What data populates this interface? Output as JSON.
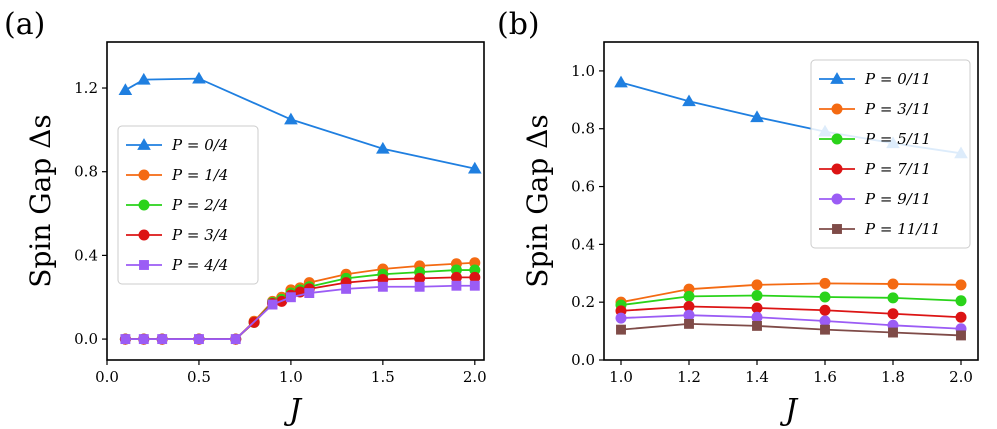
{
  "figure": {
    "panels": [
      "(a)",
      "(b)"
    ]
  },
  "chart_data": [
    {
      "type": "line",
      "panel_label": "(a)",
      "xlabel": "J",
      "ylabel": "Spin Gap Δs",
      "xlim": [
        0.0,
        2.05
      ],
      "ylim": [
        -0.1,
        1.42
      ],
      "xticks": [
        0.0,
        0.5,
        1.0,
        1.5,
        2.0
      ],
      "xtick_labels": [
        "0.0",
        "0.5",
        "1.0",
        "1.5",
        "2.0"
      ],
      "yticks": [
        0.0,
        0.4,
        0.8,
        1.2
      ],
      "ytick_labels": [
        "0.0",
        "0.4",
        "0.8",
        "1.2"
      ],
      "legend_position": "center-left",
      "series": [
        {
          "name": "P = 0/4",
          "color": "#1f7fe0",
          "marker": "triangle",
          "x": [
            0.1,
            0.2,
            0.5,
            1.0,
            1.5,
            2.0
          ],
          "y": [
            1.19,
            1.24,
            1.245,
            1.05,
            0.91,
            0.815
          ]
        },
        {
          "name": "P = 1/4",
          "color": "#f46a12",
          "marker": "circle",
          "x": [
            0.1,
            0.2,
            0.3,
            0.5,
            0.7,
            0.8,
            0.9,
            0.95,
            1.0,
            1.05,
            1.1,
            1.3,
            1.5,
            1.7,
            1.9,
            2.0
          ],
          "y": [
            0.0,
            0.0,
            0.0,
            0.0,
            0.0,
            0.085,
            0.18,
            0.2,
            0.235,
            0.245,
            0.27,
            0.31,
            0.335,
            0.35,
            0.36,
            0.365
          ]
        },
        {
          "name": "P = 2/4",
          "color": "#2ad31a",
          "marker": "circle",
          "x": [
            0.1,
            0.2,
            0.3,
            0.5,
            0.7,
            0.8,
            0.9,
            0.95,
            1.0,
            1.05,
            1.1,
            1.3,
            1.5,
            1.7,
            1.9,
            2.0
          ],
          "y": [
            0.0,
            0.0,
            0.0,
            0.0,
            0.0,
            0.08,
            0.175,
            0.19,
            0.22,
            0.235,
            0.25,
            0.29,
            0.31,
            0.32,
            0.33,
            0.33
          ]
        },
        {
          "name": "P = 3/4",
          "color": "#dc1414",
          "marker": "circle",
          "x": [
            0.1,
            0.2,
            0.3,
            0.5,
            0.7,
            0.8,
            0.9,
            0.95,
            1.0,
            1.05,
            1.1,
            1.3,
            1.5,
            1.7,
            1.9,
            2.0
          ],
          "y": [
            0.0,
            0.0,
            0.0,
            0.0,
            0.0,
            0.08,
            0.17,
            0.18,
            0.21,
            0.225,
            0.24,
            0.27,
            0.285,
            0.29,
            0.295,
            0.295
          ]
        },
        {
          "name": "P = 4/4",
          "color": "#9b5cf5",
          "marker": "square",
          "x": [
            0.1,
            0.2,
            0.3,
            0.5,
            0.7,
            0.9,
            1.0,
            1.1,
            1.3,
            1.5,
            1.7,
            1.9,
            2.0
          ],
          "y": [
            0.0,
            0.0,
            0.0,
            0.0,
            0.0,
            0.165,
            0.2,
            0.22,
            0.24,
            0.25,
            0.25,
            0.255,
            0.255
          ]
        }
      ]
    },
    {
      "type": "line",
      "panel_label": "(b)",
      "xlabel": "J",
      "ylabel": "Spin Gap Δs",
      "xlim": [
        0.95,
        2.05
      ],
      "ylim": [
        0.0,
        1.1
      ],
      "xticks": [
        1.0,
        1.2,
        1.4,
        1.6,
        1.8,
        2.0
      ],
      "xtick_labels": [
        "1.0",
        "1.2",
        "1.4",
        "1.6",
        "1.8",
        "2.0"
      ],
      "yticks": [
        0.0,
        0.2,
        0.4,
        0.6,
        0.8,
        1.0
      ],
      "ytick_labels": [
        "0.0",
        "0.2",
        "0.4",
        "0.6",
        "0.8",
        "1.0"
      ],
      "legend_position": "top-right",
      "series": [
        {
          "name": "P = 0/11",
          "color": "#1f7fe0",
          "marker": "triangle",
          "x": [
            1.0,
            1.2,
            1.4,
            1.6,
            1.8,
            2.0
          ],
          "y": [
            0.96,
            0.895,
            0.84,
            0.79,
            0.75,
            0.715
          ]
        },
        {
          "name": "P = 3/11",
          "color": "#f46a12",
          "marker": "circle",
          "x": [
            1.0,
            1.2,
            1.4,
            1.6,
            1.8,
            2.0
          ],
          "y": [
            0.2,
            0.245,
            0.26,
            0.265,
            0.263,
            0.26
          ]
        },
        {
          "name": "P = 5/11",
          "color": "#2ad31a",
          "marker": "circle",
          "x": [
            1.0,
            1.2,
            1.4,
            1.6,
            1.8,
            2.0
          ],
          "y": [
            0.19,
            0.22,
            0.223,
            0.218,
            0.215,
            0.205
          ]
        },
        {
          "name": "P = 7/11",
          "color": "#dc1414",
          "marker": "circle",
          "x": [
            1.0,
            1.2,
            1.4,
            1.6,
            1.8,
            2.0
          ],
          "y": [
            0.17,
            0.185,
            0.18,
            0.172,
            0.16,
            0.148
          ]
        },
        {
          "name": "P = 9/11",
          "color": "#9b5cf5",
          "marker": "circle",
          "x": [
            1.0,
            1.2,
            1.4,
            1.6,
            1.8,
            2.0
          ],
          "y": [
            0.145,
            0.155,
            0.148,
            0.135,
            0.12,
            0.108
          ]
        },
        {
          "name": "P = 11/11",
          "color": "#7f4b48",
          "marker": "square",
          "x": [
            1.0,
            1.2,
            1.4,
            1.6,
            1.8,
            2.0
          ],
          "y": [
            0.105,
            0.125,
            0.118,
            0.105,
            0.095,
            0.085
          ]
        }
      ]
    }
  ]
}
